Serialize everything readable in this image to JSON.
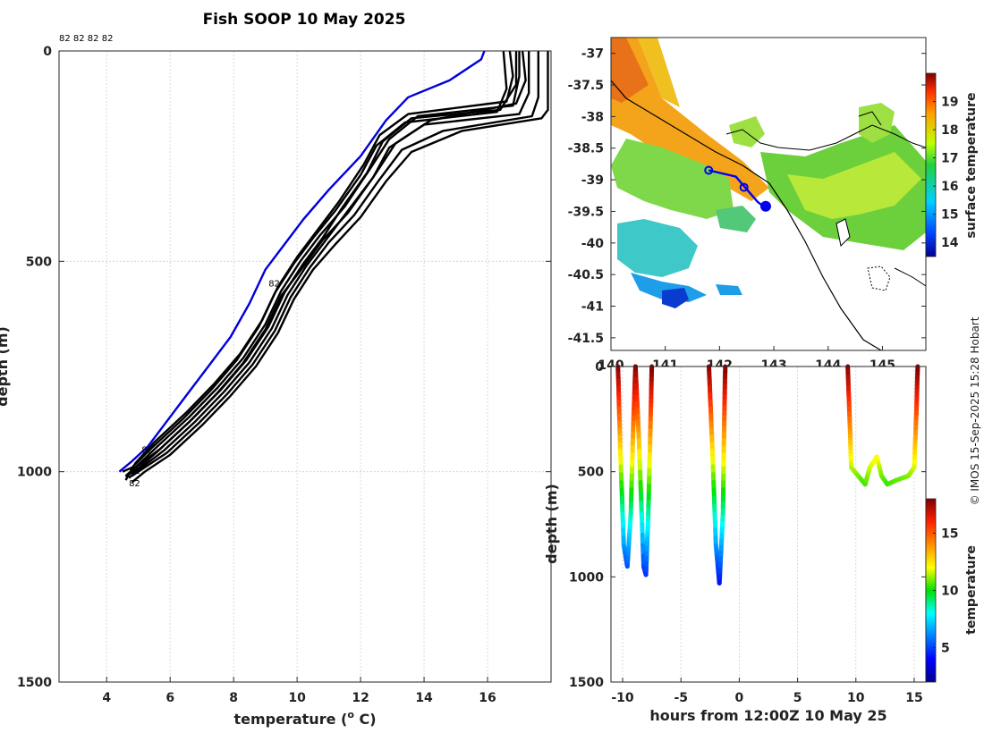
{
  "title": "Fish SOOP 10 May 2025",
  "credit": "© IMOS 15-Sep-2025 15:28 Hobart",
  "chart_data": [
    {
      "type": "line",
      "name": "temperature-depth-profiles",
      "xlabel_main": "temperature (",
      "xlabel_sup": "o",
      "xlabel_end": " C)",
      "ylabel": "depth (m)",
      "xlim": [
        2.5,
        18
      ],
      "ylim": [
        1500,
        0
      ],
      "xticks": [
        "4",
        "6",
        "8",
        "10",
        "12",
        "14",
        "16"
      ],
      "yticks": [
        "0",
        "500",
        "1000",
        "1500"
      ],
      "top_labels": "82 82 82 82",
      "profile_tags": [
        {
          "text": "82",
          "x": 9.1,
          "y": 560
        },
        {
          "text": "82",
          "x": 5.1,
          "y": 955
        },
        {
          "text": "82",
          "x": 4.7,
          "y": 1005
        },
        {
          "text": "82",
          "x": 4.7,
          "y": 1035
        }
      ],
      "highlight_profile": {
        "name": "latest-profile",
        "color": "#0000dd",
        "points": [
          [
            15.9,
            0
          ],
          [
            15.8,
            20
          ],
          [
            14.8,
            70
          ],
          [
            13.5,
            110
          ],
          [
            12.8,
            165
          ],
          [
            12.0,
            250
          ],
          [
            11.0,
            330
          ],
          [
            10.2,
            400
          ],
          [
            9.6,
            460
          ],
          [
            9.0,
            520
          ],
          [
            8.5,
            600
          ],
          [
            7.9,
            680
          ],
          [
            7.2,
            750
          ],
          [
            6.5,
            820
          ],
          [
            5.9,
            880
          ],
          [
            5.3,
            940
          ],
          [
            4.8,
            975
          ],
          [
            4.4,
            1000
          ]
        ]
      },
      "profiles": [
        {
          "name": "cast-1",
          "color": "#000000",
          "points": [
            [
              16.7,
              0
            ],
            [
              16.8,
              60
            ],
            [
              16.6,
              120
            ],
            [
              13.5,
              150
            ],
            [
              12.6,
              200
            ],
            [
              12.1,
              270
            ],
            [
              11.3,
              360
            ],
            [
              10.6,
              430
            ],
            [
              10.0,
              490
            ],
            [
              9.4,
              560
            ],
            [
              8.9,
              640
            ],
            [
              8.2,
              720
            ],
            [
              7.4,
              790
            ],
            [
              6.5,
              860
            ],
            [
              5.5,
              930
            ],
            [
              4.9,
              980
            ],
            [
              4.6,
              1020
            ]
          ]
        },
        {
          "name": "cast-2",
          "color": "#000000",
          "points": [
            [
              17.0,
              0
            ],
            [
              17.0,
              60
            ],
            [
              16.8,
              130
            ],
            [
              13.8,
              155
            ],
            [
              12.9,
              210
            ],
            [
              12.3,
              280
            ],
            [
              11.5,
              370
            ],
            [
              10.7,
              440
            ],
            [
              10.1,
              500
            ],
            [
              9.5,
              570
            ],
            [
              9.0,
              650
            ],
            [
              8.3,
              730
            ],
            [
              7.5,
              800
            ],
            [
              6.6,
              870
            ],
            [
              5.6,
              940
            ],
            [
              4.9,
              990
            ],
            [
              4.6,
              1010
            ]
          ]
        },
        {
          "name": "cast-3",
          "color": "#000000",
          "points": [
            [
              16.9,
              0
            ],
            [
              16.9,
              80
            ],
            [
              16.4,
              140
            ],
            [
              13.6,
              160
            ],
            [
              12.7,
              215
            ],
            [
              12.2,
              290
            ],
            [
              11.4,
              375
            ],
            [
              10.8,
              445
            ],
            [
              10.2,
              505
            ],
            [
              9.6,
              575
            ],
            [
              9.1,
              655
            ],
            [
              8.4,
              735
            ],
            [
              7.6,
              805
            ],
            [
              6.7,
              875
            ],
            [
              5.7,
              945
            ],
            [
              5.0,
              985
            ],
            [
              4.7,
              1005
            ]
          ]
        },
        {
          "name": "cast-4",
          "color": "#000000",
          "points": [
            [
              17.1,
              0
            ],
            [
              17.2,
              70
            ],
            [
              16.9,
              125
            ],
            [
              14.2,
              165
            ],
            [
              13.1,
              220
            ],
            [
              12.4,
              300
            ],
            [
              11.6,
              380
            ],
            [
              10.9,
              450
            ],
            [
              10.3,
              510
            ],
            [
              9.7,
              580
            ],
            [
              9.2,
              660
            ],
            [
              8.5,
              740
            ],
            [
              7.7,
              810
            ],
            [
              6.8,
              880
            ],
            [
              5.8,
              950
            ],
            [
              5.1,
              990
            ],
            [
              4.7,
              1015
            ]
          ]
        },
        {
          "name": "cast-5",
          "color": "#000000",
          "points": [
            [
              17.6,
              0
            ],
            [
              17.6,
              110
            ],
            [
              17.4,
              155
            ],
            [
              14.6,
              190
            ],
            [
              13.3,
              235
            ],
            [
              12.6,
              305
            ],
            [
              11.8,
              390
            ],
            [
              11.0,
              455
            ],
            [
              10.4,
              515
            ],
            [
              9.8,
              585
            ],
            [
              9.3,
              665
            ],
            [
              8.6,
              745
            ],
            [
              7.8,
              815
            ],
            [
              6.9,
              885
            ],
            [
              5.9,
              955
            ],
            [
              5.1,
              995
            ],
            [
              4.8,
              1010
            ]
          ]
        },
        {
          "name": "cast-6",
          "color": "#000000",
          "points": [
            [
              17.9,
              0
            ],
            [
              17.9,
              140
            ],
            [
              17.7,
              160
            ],
            [
              15.2,
              190
            ],
            [
              13.6,
              240
            ],
            [
              12.8,
              310
            ],
            [
              12.0,
              395
            ],
            [
              11.2,
              460
            ],
            [
              10.5,
              520
            ],
            [
              9.9,
              590
            ],
            [
              9.4,
              670
            ],
            [
              8.7,
              750
            ],
            [
              7.9,
              820
            ],
            [
              7.0,
              890
            ],
            [
              6.0,
              960
            ],
            [
              5.2,
              1000
            ],
            [
              4.8,
              1025
            ]
          ]
        },
        {
          "name": "cast-7",
          "color": "#000000",
          "points": [
            [
              16.5,
              0
            ],
            [
              16.6,
              90
            ],
            [
              16.3,
              145
            ],
            [
              13.4,
              170
            ],
            [
              12.5,
              225
            ],
            [
              12.0,
              295
            ],
            [
              11.2,
              380
            ],
            [
              10.5,
              445
            ],
            [
              9.9,
              505
            ],
            [
              9.3,
              575
            ],
            [
              8.8,
              655
            ],
            [
              8.1,
              735
            ],
            [
              7.3,
              805
            ],
            [
              6.4,
              875
            ],
            [
              5.4,
              945
            ],
            [
              4.8,
              990
            ],
            [
              4.5,
              1000
            ]
          ]
        },
        {
          "name": "cast-8",
          "color": "#000000",
          "points": [
            [
              17.3,
              0
            ],
            [
              17.3,
              100
            ],
            [
              17.0,
              150
            ],
            [
              14.0,
              175
            ],
            [
              12.9,
              230
            ],
            [
              12.4,
              300
            ],
            [
              11.6,
              385
            ],
            [
              10.8,
              450
            ],
            [
              10.2,
              512
            ],
            [
              9.5,
              582
            ],
            [
              9.0,
              662
            ],
            [
              8.3,
              742
            ],
            [
              7.5,
              812
            ],
            [
              6.6,
              882
            ],
            [
              5.6,
              952
            ],
            [
              5.0,
              992
            ],
            [
              4.6,
              1012
            ]
          ]
        }
      ]
    },
    {
      "type": "heatmap",
      "name": "surface-temperature-map",
      "xlim": [
        140,
        145.8
      ],
      "ylim": [
        -41.7,
        -36.75
      ],
      "xticks": [
        "140",
        "141",
        "142",
        "143",
        "144",
        "145"
      ],
      "yticks": [
        "-37",
        "-37.5",
        "-38",
        "-38.5",
        "-39",
        "-39.5",
        "-40",
        "-40.5",
        "-41",
        "-41.5"
      ],
      "colorbar_label": "surface temperature",
      "colorbar_ticks": [
        "14",
        "15",
        "16",
        "17",
        "18",
        "19"
      ],
      "colorbar_range": [
        13.5,
        20
      ],
      "ship_track": [
        [
          141.8,
          -38.85
        ],
        [
          142.05,
          -38.9
        ],
        [
          142.3,
          -38.95
        ],
        [
          142.5,
          -39.15
        ],
        [
          142.7,
          -39.35
        ],
        [
          142.85,
          -39.45
        ]
      ],
      "cast_markers": [
        [
          141.8,
          -38.85
        ],
        [
          142.45,
          -39.12
        ],
        [
          142.85,
          -39.42
        ]
      ]
    },
    {
      "type": "scatter",
      "name": "depth-time-section",
      "xlabel": "hours from 12:00Z 10 May 25",
      "ylabel": "depth (m)",
      "xlim": [
        -11,
        16
      ],
      "ylim": [
        1500,
        0
      ],
      "xticks": [
        "-10",
        "-5",
        "0",
        "5",
        "10",
        "15"
      ],
      "yticks": [
        "0",
        "500",
        "1000",
        "1500"
      ],
      "colorbar_label": "temperature",
      "colorbar_ticks": [
        "5",
        "10",
        "15"
      ],
      "colorbar_range": [
        2,
        18
      ],
      "dives": [
        [
          [
            -10.4,
            0
          ],
          [
            -10.2,
            400
          ],
          [
            -9.9,
            850
          ],
          [
            -9.6,
            950
          ],
          [
            -9.3,
            700
          ],
          [
            -9.1,
            300
          ],
          [
            -8.9,
            0
          ]
        ],
        [
          [
            -8.9,
            0
          ],
          [
            -8.6,
            350
          ],
          [
            -8.2,
            950
          ],
          [
            -8.0,
            990
          ],
          [
            -7.8,
            700
          ],
          [
            -7.6,
            250
          ],
          [
            -7.5,
            0
          ]
        ],
        [
          [
            -2.6,
            0
          ],
          [
            -2.3,
            400
          ],
          [
            -2.0,
            850
          ],
          [
            -1.7,
            1030
          ],
          [
            -1.4,
            700
          ],
          [
            -1.3,
            300
          ],
          [
            -1.2,
            0
          ]
        ],
        [
          [
            9.3,
            0
          ],
          [
            9.5,
            300
          ],
          [
            9.6,
            480
          ],
          [
            10.2,
            520
          ],
          [
            10.8,
            560
          ],
          [
            11.2,
            480
          ],
          [
            11.8,
            430
          ],
          [
            12.2,
            520
          ],
          [
            12.7,
            560
          ],
          [
            13.5,
            540
          ],
          [
            14.5,
            520
          ],
          [
            15.0,
            480
          ],
          [
            15.2,
            200
          ],
          [
            15.3,
            0
          ]
        ]
      ]
    }
  ]
}
